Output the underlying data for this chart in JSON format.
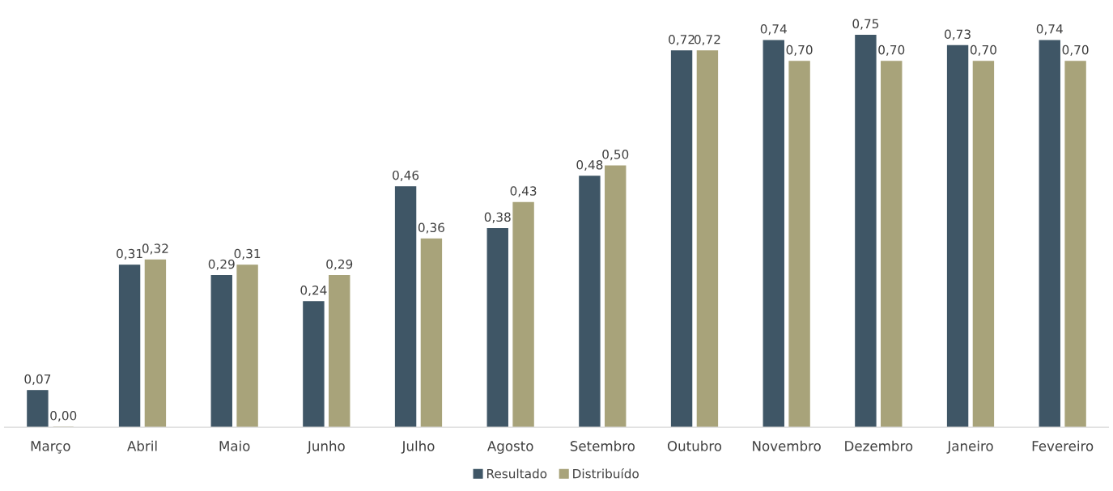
{
  "chart_data": {
    "type": "bar",
    "categories": [
      "Março",
      "Abril",
      "Maio",
      "Junho",
      "Julho",
      "Agosto",
      "Setembro",
      "Outubro",
      "Novembro",
      "Dezembro",
      "Janeiro",
      "Fevereiro"
    ],
    "series": [
      {
        "name": "Resultado",
        "color": "#3f5666",
        "values": [
          0.07,
          0.31,
          0.29,
          0.24,
          0.46,
          0.38,
          0.48,
          0.72,
          0.74,
          0.75,
          0.73,
          0.74
        ],
        "value_labels": [
          "0,07",
          "0,31",
          "0,29",
          "0,24",
          "0,46",
          "0,38",
          "0,48",
          "0,72",
          "0,74",
          "0,75",
          "0,73",
          "0,74"
        ]
      },
      {
        "name": "Distribuído",
        "color": "#a8a37a",
        "values": [
          0.0,
          0.32,
          0.31,
          0.29,
          0.36,
          0.43,
          0.5,
          0.72,
          0.7,
          0.7,
          0.7,
          0.7
        ],
        "value_labels": [
          "0,00",
          "0,32",
          "0,31",
          "0,29",
          "0,36",
          "0,43",
          "0,50",
          "0,72",
          "0,70",
          "0,70",
          "0,70",
          "0,70"
        ]
      }
    ],
    "grid": false,
    "legend": "bottom",
    "tick_labels": "x"
  }
}
